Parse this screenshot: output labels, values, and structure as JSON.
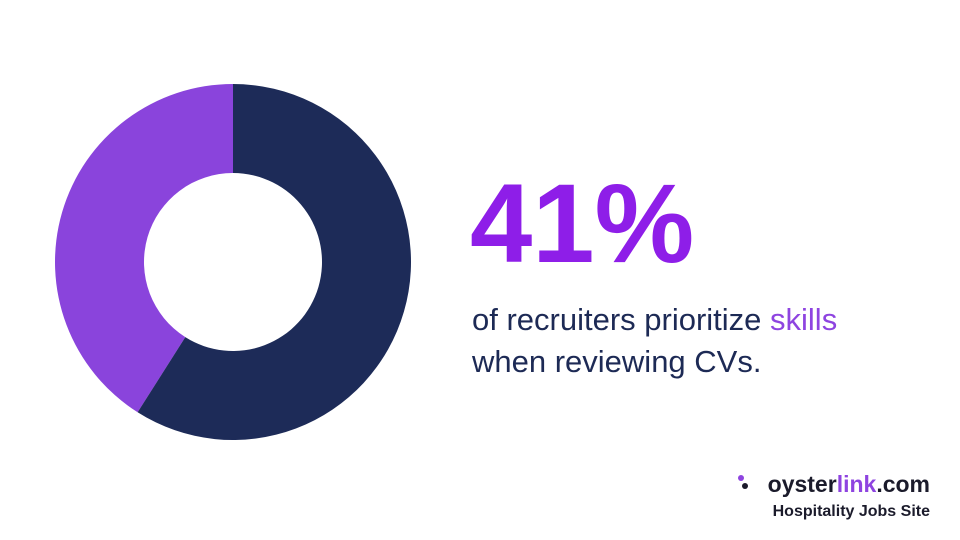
{
  "chart_data": {
    "type": "donut",
    "values": [
      41,
      59
    ],
    "value_labels": [
      "41%",
      null
    ],
    "colors": [
      "#8a44dc",
      "#1d2b58"
    ],
    "start": "top",
    "direction": "counterclockwise",
    "caption_parts": [
      "of recruiters prioritize ",
      "skills",
      "when reviewing CVs."
    ]
  },
  "footer": {
    "brand_parts": [
      "oyster",
      "link",
      ".com"
    ],
    "tagline": "Hospitality Jobs Site"
  }
}
